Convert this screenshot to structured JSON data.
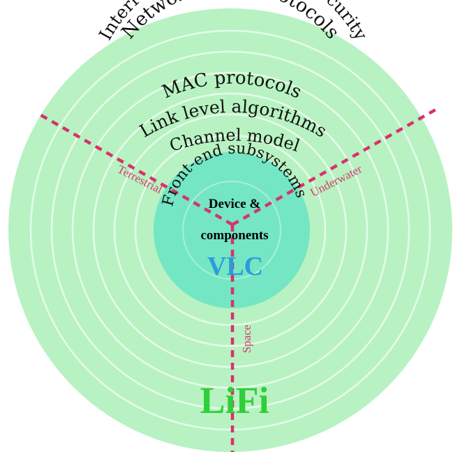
{
  "rings": {
    "networking": "Networking & protocols",
    "interference": "Interference mitigation & security",
    "mac": "MAC protocols",
    "link": "Link level algorithms",
    "channel": "Channel model",
    "frontend": "Front-end subsystems"
  },
  "center": {
    "line1": "Device &",
    "line2": "components"
  },
  "titles": {
    "vlc": "VLC",
    "lifi": "LiFi"
  },
  "domains": {
    "terrestrial": "Terrestrial",
    "underwater": "Underwater",
    "space": "Space"
  },
  "colors": {
    "outer_disk": "#b8f2c2",
    "inner_disk": "#74e6c3",
    "ring_lines": "#e6fbe9",
    "dashed": "#d6336c",
    "domain_text": "#d63a6e",
    "vlc_text": "#2a9be0",
    "lifi_text": "#2fcf3a"
  }
}
